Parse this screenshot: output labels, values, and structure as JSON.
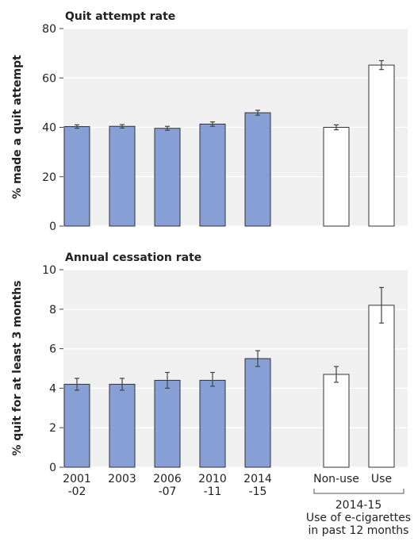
{
  "chart_data": [
    {
      "type": "bar",
      "title": "Quit attempt rate",
      "ylabel": "% made a quit attempt",
      "ylim": [
        0,
        80
      ],
      "yticks": [
        0,
        20,
        40,
        60,
        80
      ],
      "grid": true,
      "categories": [
        "2001-02",
        "2003",
        "2006-07",
        "2010-11",
        "2014-15",
        "Non-use",
        "Use"
      ],
      "values": [
        40.3,
        40.4,
        39.6,
        41.3,
        45.9,
        40.0,
        65.2
      ],
      "ci_low": [
        39.6,
        39.7,
        38.8,
        40.4,
        44.9,
        39.0,
        63.4
      ],
      "ci_high": [
        41.0,
        41.1,
        40.4,
        42.2,
        46.9,
        41.0,
        67.0
      ],
      "colors": [
        "#869fd4",
        "#869fd4",
        "#869fd4",
        "#869fd4",
        "#869fd4",
        "#ffffff",
        "#ffffff"
      ]
    },
    {
      "type": "bar",
      "title": "Annual cessation rate",
      "ylabel": "% quit for at least 3 months",
      "ylim": [
        0,
        10
      ],
      "yticks": [
        0,
        2,
        4,
        6,
        8,
        10
      ],
      "grid": true,
      "categories": [
        "2001-02",
        "2003",
        "2006-07",
        "2010-11",
        "2014-15",
        "Non-use",
        "Use"
      ],
      "values": [
        4.2,
        4.2,
        4.4,
        4.4,
        5.5,
        4.7,
        8.2
      ],
      "ci_low": [
        3.9,
        3.9,
        4.0,
        4.1,
        5.1,
        4.3,
        7.3
      ],
      "ci_high": [
        4.5,
        4.5,
        4.8,
        4.8,
        5.9,
        5.1,
        9.1
      ],
      "colors": [
        "#869fd4",
        "#869fd4",
        "#869fd4",
        "#869fd4",
        "#869fd4",
        "#ffffff",
        "#ffffff"
      ]
    }
  ],
  "x_tick_labels": [
    [
      "2001",
      "-02"
    ],
    [
      "2003",
      ""
    ],
    [
      "2006",
      "-07"
    ],
    [
      "2010",
      "-11"
    ],
    [
      "2014",
      "-15"
    ],
    [
      "Non-use",
      ""
    ],
    [
      "Use",
      ""
    ]
  ],
  "group_note": {
    "line1": "2014-15",
    "line2": "Use of e-cigarettes",
    "line3": "in past 12 months"
  }
}
